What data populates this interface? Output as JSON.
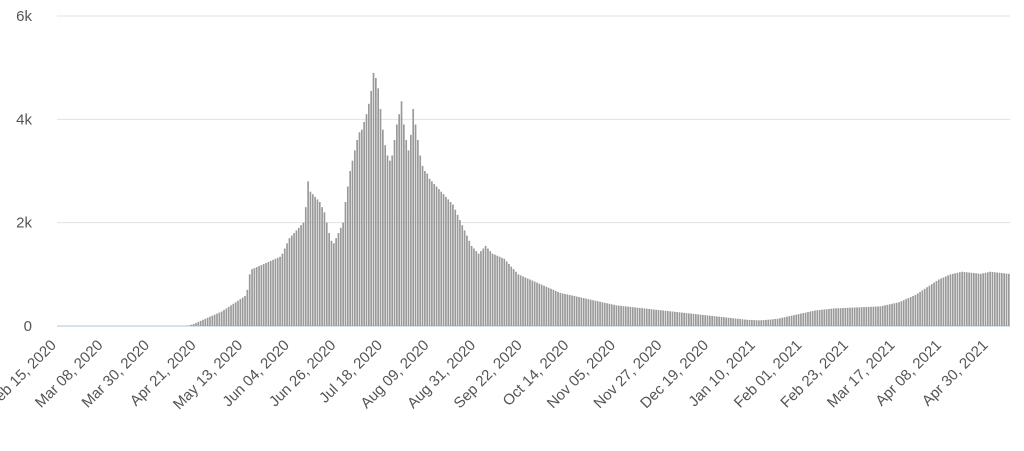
{
  "chart_data": {
    "type": "bar",
    "title": "",
    "xlabel": "",
    "ylabel": "",
    "ylim": [
      0,
      6000
    ],
    "y_ticks": [
      {
        "value": 0,
        "label": "0"
      },
      {
        "value": 2000,
        "label": "2k"
      },
      {
        "value": 4000,
        "label": "4k"
      },
      {
        "value": 6000,
        "label": "6k"
      }
    ],
    "x_start": "2020-02-15",
    "x_end": "2021-05-10",
    "x_ticks": [
      "Feb 15, 2020",
      "Mar 08, 2020",
      "Mar 30, 2020",
      "Apr 21, 2020",
      "May 13, 2020",
      "Jun 04, 2020",
      "Jun 26, 2020",
      "Jul 18, 2020",
      "Aug 09, 2020",
      "Aug 31, 2020",
      "Sep 22, 2020",
      "Oct 14, 2020",
      "Nov 05, 2020",
      "Nov 27, 2020",
      "Dec 19, 2020",
      "Jan 10, 2021",
      "Feb 01, 2021",
      "Feb 23, 2021",
      "Mar 17, 2021",
      "Apr 08, 2021",
      "Apr 30, 2021"
    ],
    "grid": true,
    "bar_color": "#999999",
    "grid_color": "#dde3e8",
    "baseline_color": "#b9d3e0",
    "series": [
      {
        "values": [
          0,
          0,
          0,
          0,
          0,
          0,
          0,
          0,
          0,
          0,
          0,
          0,
          0,
          0,
          0,
          0,
          0,
          0,
          0,
          0,
          0,
          0,
          0,
          0,
          0,
          0,
          0,
          0,
          0,
          0,
          0,
          0,
          0,
          0,
          0,
          0,
          0,
          0,
          0,
          0,
          0,
          0,
          0,
          0,
          0,
          0,
          0,
          0,
          0,
          0,
          0,
          0,
          0,
          0,
          0,
          5,
          10,
          25,
          40,
          60,
          80,
          100,
          120,
          140,
          160,
          180,
          200,
          220,
          240,
          260,
          280,
          310,
          340,
          370,
          400,
          430,
          460,
          490,
          520,
          550,
          580,
          700,
          1000,
          1100,
          1120,
          1140,
          1160,
          1180,
          1200,
          1220,
          1240,
          1260,
          1280,
          1300,
          1320,
          1340,
          1400,
          1500,
          1600,
          1700,
          1750,
          1800,
          1850,
          1900,
          1950,
          2000,
          2300,
          2800,
          2600,
          2550,
          2500,
          2450,
          2400,
          2300,
          2200,
          2000,
          1800,
          1650,
          1600,
          1700,
          1800,
          1900,
          2000,
          2400,
          2700,
          3000,
          3200,
          3400,
          3600,
          3750,
          3800,
          3950,
          4100,
          4300,
          4550,
          4900,
          4800,
          4600,
          4200,
          3800,
          3500,
          3300,
          3200,
          3300,
          3600,
          3900,
          4100,
          4350,
          3900,
          3600,
          3400,
          3700,
          4200,
          3900,
          3600,
          3300,
          3100,
          3000,
          2950,
          2850,
          2800,
          2750,
          2700,
          2650,
          2600,
          2550,
          2500,
          2450,
          2400,
          2350,
          2250,
          2150,
          2050,
          1950,
          1850,
          1750,
          1650,
          1550,
          1500,
          1450,
          1400,
          1450,
          1500,
          1550,
          1500,
          1450,
          1400,
          1380,
          1360,
          1340,
          1320,
          1300,
          1250,
          1200,
          1150,
          1100,
          1050,
          1000,
          980,
          960,
          940,
          920,
          900,
          880,
          860,
          840,
          820,
          800,
          780,
          760,
          740,
          720,
          700,
          680,
          660,
          640,
          630,
          620,
          610,
          600,
          590,
          580,
          570,
          560,
          550,
          540,
          530,
          520,
          510,
          500,
          490,
          480,
          470,
          460,
          450,
          440,
          430,
          420,
          410,
          400,
          395,
          390,
          385,
          380,
          375,
          370,
          365,
          360,
          355,
          350,
          345,
          340,
          335,
          330,
          325,
          320,
          315,
          310,
          305,
          300,
          295,
          290,
          285,
          280,
          275,
          270,
          265,
          260,
          255,
          250,
          245,
          240,
          235,
          230,
          225,
          220,
          215,
          210,
          205,
          200,
          195,
          190,
          185,
          180,
          175,
          170,
          165,
          160,
          155,
          150,
          145,
          140,
          135,
          130,
          125,
          120,
          118,
          116,
          114,
          112,
          110,
          112,
          115,
          118,
          122,
          126,
          130,
          135,
          140,
          150,
          160,
          170,
          180,
          190,
          200,
          210,
          220,
          230,
          240,
          250,
          260,
          270,
          280,
          290,
          300,
          305,
          310,
          315,
          320,
          325,
          330,
          335,
          340,
          342,
          344,
          346,
          348,
          350,
          352,
          354,
          356,
          358,
          360,
          362,
          364,
          366,
          368,
          370,
          372,
          374,
          376,
          378,
          380,
          390,
          400,
          410,
          420,
          430,
          440,
          450,
          460,
          480,
          500,
          520,
          540,
          560,
          580,
          600,
          630,
          660,
          690,
          720,
          750,
          780,
          810,
          840,
          870,
          900,
          920,
          940,
          960,
          980,
          1000,
          1010,
          1020,
          1030,
          1040,
          1050,
          1045,
          1040,
          1035,
          1030,
          1025,
          1020,
          1015,
          1010,
          1020,
          1030,
          1040,
          1050,
          1045,
          1040,
          1035,
          1030,
          1025,
          1020,
          1015,
          1010
        ]
      }
    ]
  }
}
